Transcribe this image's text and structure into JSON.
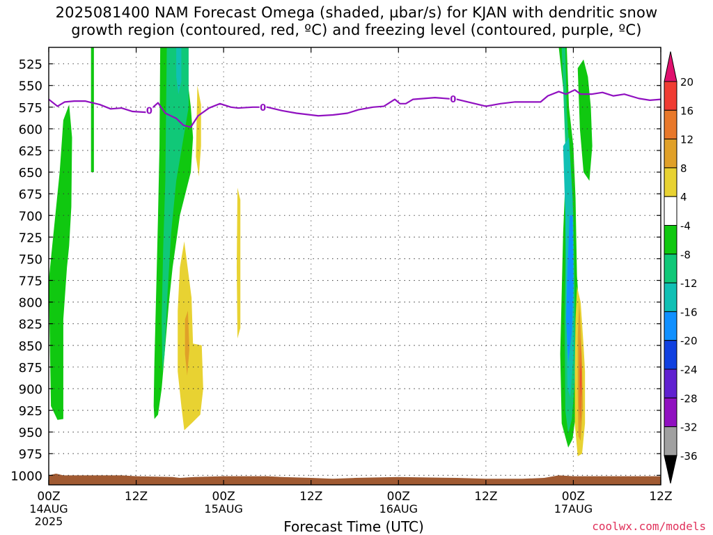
{
  "title": {
    "line1": "2025081400 NAM Forecast Omega (shaded, µbar/s) for KJAN with dendritic snow",
    "line2": "growth region (contoured, red, ºC) and freezing level (contoured, purple, ºC)"
  },
  "credit": "coolwx.com/models",
  "chart_data": {
    "type": "heatmap",
    "xlabel": "Forecast Time (UTC)",
    "ylabel": "",
    "x_ticks": [
      {
        "t": 0,
        "label": "00Z",
        "date": "14AUG",
        "year": "2025"
      },
      {
        "t": 12,
        "label": "12Z",
        "date": "",
        "year": ""
      },
      {
        "t": 24,
        "label": "00Z",
        "date": "15AUG",
        "year": ""
      },
      {
        "t": 36,
        "label": "12Z",
        "date": "",
        "year": ""
      },
      {
        "t": 48,
        "label": "00Z",
        "date": "16AUG",
        "year": ""
      },
      {
        "t": 60,
        "label": "12Z",
        "date": "",
        "year": ""
      },
      {
        "t": 72,
        "label": "00Z",
        "date": "17AUG",
        "year": ""
      },
      {
        "t": 84,
        "label": "12Z",
        "date": "",
        "year": ""
      }
    ],
    "xlim_hours": [
      0,
      84
    ],
    "y_ticks": [
      525,
      550,
      575,
      600,
      625,
      650,
      675,
      700,
      725,
      750,
      775,
      800,
      825,
      850,
      875,
      900,
      925,
      950,
      975,
      1000
    ],
    "ylim_mb": [
      506,
      1011
    ],
    "colorbar": {
      "labels": [
        "20",
        "16",
        "12",
        "8",
        "4",
        "-4",
        "-8",
        "-12",
        "-16",
        "-20",
        "-24",
        "-28",
        "-32",
        "-36"
      ],
      "colors": [
        "#e0106e",
        "#f03c32",
        "#e8782a",
        "#e0a028",
        "#e8d232",
        "#ffffff",
        "#10c810",
        "#10c878",
        "#10c0b4",
        "#1090ff",
        "#1040e0",
        "#6020d0",
        "#9010c0",
        "#a0a0a0",
        "#000000"
      ]
    },
    "freezing_level": {
      "label": "0",
      "color": "#9010c0",
      "points": [
        [
          0,
          566
        ],
        [
          1.2,
          574
        ],
        [
          2.2,
          569
        ],
        [
          3.5,
          568
        ],
        [
          5,
          568
        ],
        [
          7,
          572
        ],
        [
          8.5,
          577
        ],
        [
          10,
          576
        ],
        [
          11.5,
          580
        ],
        [
          13.5,
          581
        ],
        [
          15,
          570
        ],
        [
          16,
          582
        ],
        [
          17.5,
          588
        ],
        [
          18.5,
          596
        ],
        [
          19.5,
          598
        ],
        [
          20.5,
          585
        ],
        [
          22,
          576
        ],
        [
          23.5,
          571
        ],
        [
          25,
          575
        ],
        [
          26,
          576
        ],
        [
          28,
          575
        ],
        [
          30,
          575
        ],
        [
          32,
          579
        ],
        [
          34,
          582
        ],
        [
          37,
          585
        ],
        [
          39,
          584
        ],
        [
          41,
          582
        ],
        [
          42.5,
          578
        ],
        [
          44.5,
          575
        ],
        [
          46,
          574
        ],
        [
          47.5,
          566
        ],
        [
          48.2,
          571
        ],
        [
          49,
          571
        ],
        [
          50,
          566
        ],
        [
          53,
          564
        ],
        [
          56,
          566
        ],
        [
          58,
          570
        ],
        [
          60,
          574
        ],
        [
          62,
          571
        ],
        [
          64,
          569
        ],
        [
          66,
          569
        ],
        [
          67.5,
          569
        ],
        [
          68.5,
          562
        ],
        [
          70,
          557
        ],
        [
          71,
          560
        ],
        [
          72.2,
          555
        ],
        [
          73,
          560
        ],
        [
          74.5,
          560
        ],
        [
          76,
          558
        ],
        [
          77.5,
          562
        ],
        [
          79,
          560
        ],
        [
          81,
          565
        ],
        [
          82.5,
          567
        ],
        [
          84,
          566
        ]
      ],
      "labels_at_hours": [
        13.8,
        29.4,
        55.5
      ]
    },
    "omega_regions": [
      {
        "value": -6,
        "color": "#10c810",
        "points": [
          [
            0,
            775
          ],
          [
            1.5,
            650
          ],
          [
            2,
            590
          ],
          [
            2.8,
            572
          ],
          [
            3.2,
            610
          ],
          [
            3.1,
            690
          ],
          [
            2.8,
            735
          ],
          [
            2.5,
            760
          ],
          [
            2,
            820
          ],
          [
            2.0,
            935
          ],
          [
            1.2,
            936
          ],
          [
            0.3,
            920
          ]
        ]
      },
      {
        "value": -6,
        "color": "#10c810",
        "points": [
          [
            5.8,
            506
          ],
          [
            6.2,
            506
          ],
          [
            6.2,
            650
          ],
          [
            5.8,
            650
          ]
        ]
      },
      {
        "value": -6,
        "color": "#10c810",
        "points": [
          [
            15.3,
            506
          ],
          [
            18.5,
            506
          ],
          [
            19.5,
            575
          ],
          [
            19.8,
            610
          ],
          [
            19.5,
            650
          ],
          [
            18,
            700
          ],
          [
            17,
            760
          ],
          [
            16.5,
            800
          ],
          [
            16,
            850
          ],
          [
            15.5,
            900
          ],
          [
            15,
            930
          ],
          [
            14.5,
            935
          ],
          [
            14.4,
            920
          ],
          [
            14.5,
            870
          ],
          [
            14.8,
            770
          ],
          [
            15.0,
            700
          ],
          [
            15.2,
            620
          ]
        ]
      },
      {
        "value": -10,
        "color": "#10c878",
        "points": [
          [
            16.2,
            506
          ],
          [
            19.2,
            506
          ],
          [
            19.2,
            575
          ],
          [
            18.5,
            610
          ],
          [
            17.5,
            660
          ],
          [
            16.8,
            720
          ],
          [
            16.3,
            790
          ],
          [
            15.9,
            860
          ],
          [
            15.6,
            880
          ],
          [
            15.5,
            820
          ],
          [
            15.7,
            740
          ],
          [
            16,
            660
          ]
        ]
      },
      {
        "value": -14,
        "color": "#10c0b4",
        "points": [
          [
            17.5,
            506
          ],
          [
            18.2,
            506
          ],
          [
            18.2,
            545
          ],
          [
            17.8,
            560
          ],
          [
            17.5,
            540
          ]
        ]
      },
      {
        "value": 5,
        "color": "#e8d232",
        "points": [
          [
            20.4,
            550
          ],
          [
            20.9,
            572
          ],
          [
            20.9,
            620
          ],
          [
            20.6,
            655
          ],
          [
            20.2,
            632
          ],
          [
            20.3,
            590
          ]
        ]
      },
      {
        "value": 5,
        "color": "#e8d232",
        "points": [
          [
            18,
            760
          ],
          [
            18.6,
            730
          ],
          [
            19.6,
            795
          ],
          [
            19.8,
            848
          ],
          [
            21,
            850
          ],
          [
            21.2,
            900
          ],
          [
            20.8,
            930
          ],
          [
            19.6,
            940
          ],
          [
            18.6,
            948
          ],
          [
            18.2,
            920
          ],
          [
            17.7,
            880
          ],
          [
            17.7,
            810
          ]
        ]
      },
      {
        "value": 9,
        "color": "#e0a028",
        "points": [
          [
            18.7,
            820
          ],
          [
            19.1,
            810
          ],
          [
            19.3,
            855
          ],
          [
            19.0,
            885
          ],
          [
            18.7,
            860
          ]
        ]
      },
      {
        "value": 5,
        "color": "#e8d232",
        "points": [
          [
            25.9,
            668
          ],
          [
            26.3,
            682
          ],
          [
            26.3,
            830
          ],
          [
            25.9,
            842
          ],
          [
            25.8,
            760
          ]
        ]
      },
      {
        "value": -6,
        "color": "#10c810",
        "points": [
          [
            70,
            506
          ],
          [
            71.1,
            506
          ],
          [
            71.4,
            575
          ],
          [
            72,
            620
          ],
          [
            72.3,
            680
          ],
          [
            72.5,
            770
          ],
          [
            72.9,
            820
          ],
          [
            72.8,
            880
          ],
          [
            72.4,
            925
          ],
          [
            71.9,
            958
          ],
          [
            71.3,
            968
          ],
          [
            70.4,
            940
          ],
          [
            70.2,
            860
          ],
          [
            70.6,
            720
          ],
          [
            71,
            640
          ],
          [
            70.7,
            560
          ]
        ]
      },
      {
        "value": -6,
        "color": "#10c810",
        "points": [
          [
            72.6,
            530
          ],
          [
            73.4,
            520
          ],
          [
            74,
            540
          ],
          [
            74.4,
            575
          ],
          [
            74.6,
            620
          ],
          [
            74.2,
            660
          ],
          [
            73.4,
            650
          ],
          [
            72.9,
            600
          ]
        ]
      },
      {
        "value": -10,
        "color": "#10c878",
        "points": [
          [
            70.4,
            506
          ],
          [
            70.9,
            506
          ],
          [
            71.1,
            580
          ],
          [
            71.6,
            640
          ],
          [
            72,
            700
          ],
          [
            72.2,
            800
          ],
          [
            72.3,
            880
          ],
          [
            71.8,
            935
          ],
          [
            71.3,
            952
          ],
          [
            70.9,
            925
          ],
          [
            70.8,
            820
          ],
          [
            71,
            720
          ],
          [
            70.9,
            620
          ]
        ]
      },
      {
        "value": -14,
        "color": "#10c0b4",
        "points": [
          [
            70.6,
            620
          ],
          [
            71.4,
            610
          ],
          [
            71.9,
            680
          ],
          [
            72.1,
            770
          ],
          [
            72.0,
            860
          ],
          [
            71.6,
            910
          ],
          [
            71.2,
            900
          ],
          [
            71,
            800
          ],
          [
            70.9,
            700
          ]
        ]
      },
      {
        "value": -18,
        "color": "#1090ff",
        "points": [
          [
            71.5,
            700
          ],
          [
            71.9,
            700
          ],
          [
            72,
            780
          ],
          [
            71.8,
            835
          ],
          [
            71.3,
            870
          ],
          [
            71.0,
            820
          ],
          [
            71.2,
            760
          ]
        ]
      },
      {
        "value": 5,
        "color": "#e8d232",
        "points": [
          [
            72.5,
            782
          ],
          [
            73.0,
            800
          ],
          [
            73.4,
            850
          ],
          [
            73.6,
            880
          ],
          [
            73.6,
            940
          ],
          [
            73.2,
            975
          ],
          [
            72.6,
            978
          ],
          [
            72.2,
            940
          ],
          [
            72.2,
            880
          ],
          [
            72.3,
            820
          ]
        ]
      },
      {
        "value": 9,
        "color": "#e0a028",
        "points": [
          [
            72.8,
            800
          ],
          [
            73.0,
            830
          ],
          [
            73.2,
            870
          ],
          [
            73.3,
            920
          ],
          [
            73.0,
            960
          ],
          [
            72.7,
            955
          ],
          [
            72.6,
            900
          ],
          [
            72.6,
            840
          ]
        ]
      },
      {
        "value": 13,
        "color": "#e8782a",
        "points": [
          [
            72.9,
            840
          ],
          [
            73.1,
            860
          ],
          [
            73.2,
            900
          ],
          [
            73.0,
            940
          ],
          [
            72.8,
            920
          ],
          [
            72.8,
            880
          ]
        ]
      },
      {
        "value": 17,
        "color": "#f03c32",
        "points": [
          [
            73.0,
            870
          ],
          [
            73.1,
            880
          ],
          [
            73.05,
            910
          ],
          [
            72.95,
            895
          ]
        ]
      }
    ],
    "terrain": {
      "color": "#a05a32",
      "points": [
        [
          0,
          1000
        ],
        [
          1,
          998
        ],
        [
          2,
          1000
        ],
        [
          10,
          1000
        ],
        [
          12,
          1001
        ],
        [
          17,
          1002
        ],
        [
          18,
          1003
        ],
        [
          20,
          1002
        ],
        [
          24,
          1001
        ],
        [
          30,
          1001
        ],
        [
          32,
          1002
        ],
        [
          36,
          1003
        ],
        [
          39,
          1004
        ],
        [
          42,
          1003
        ],
        [
          48,
          1002
        ],
        [
          56,
          1003
        ],
        [
          60,
          1004
        ],
        [
          65,
          1004
        ],
        [
          68,
          1003
        ],
        [
          70,
          1000
        ],
        [
          72,
          1001
        ],
        [
          84,
          1001
        ]
      ]
    }
  }
}
